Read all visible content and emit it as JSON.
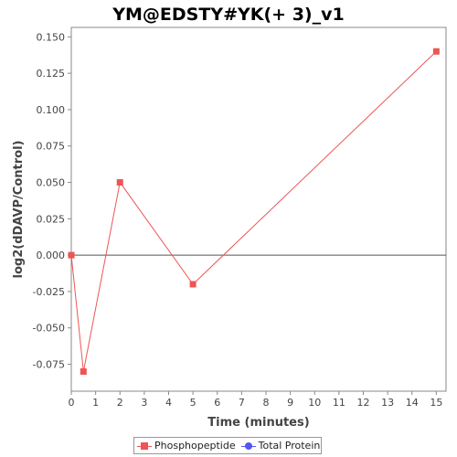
{
  "chart_data": {
    "type": "line",
    "title": "YM@EDSTY#YK(+ 3)_v1",
    "xlabel": "Time (minutes)",
    "ylabel": "log2(dDAVP/Control)",
    "x_tick_labels": [
      "0",
      "1",
      "2",
      "3",
      "4",
      "5",
      "6",
      "7",
      "8",
      "9",
      "10",
      "11",
      "12",
      "13",
      "14",
      "15"
    ],
    "y_ticks": [
      -0.075,
      -0.05,
      -0.025,
      0,
      0.025,
      0.05,
      0.075,
      0.1,
      0.125,
      0.15
    ],
    "y_tick_labels": [
      "-0.075",
      "-0.050",
      "-0.025",
      "0.000",
      "0.025",
      "0.050",
      "0.075",
      "0.100",
      "0.125",
      "0.150"
    ],
    "xlim": [
      0,
      15.4
    ],
    "ylim": [
      -0.0935,
      0.1565
    ],
    "grid": false,
    "zero_line": true,
    "legend_position": "bottom",
    "series": [
      {
        "name": "Phosphopeptide",
        "color": "#ee5555",
        "marker": "square",
        "x": [
          0,
          0.5,
          2,
          5,
          15
        ],
        "y": [
          0.0,
          -0.08,
          0.05,
          -0.02,
          0.14
        ]
      },
      {
        "name": "Total Protein",
        "color": "#5555ee",
        "marker": "circle",
        "x": [],
        "y": []
      }
    ]
  }
}
